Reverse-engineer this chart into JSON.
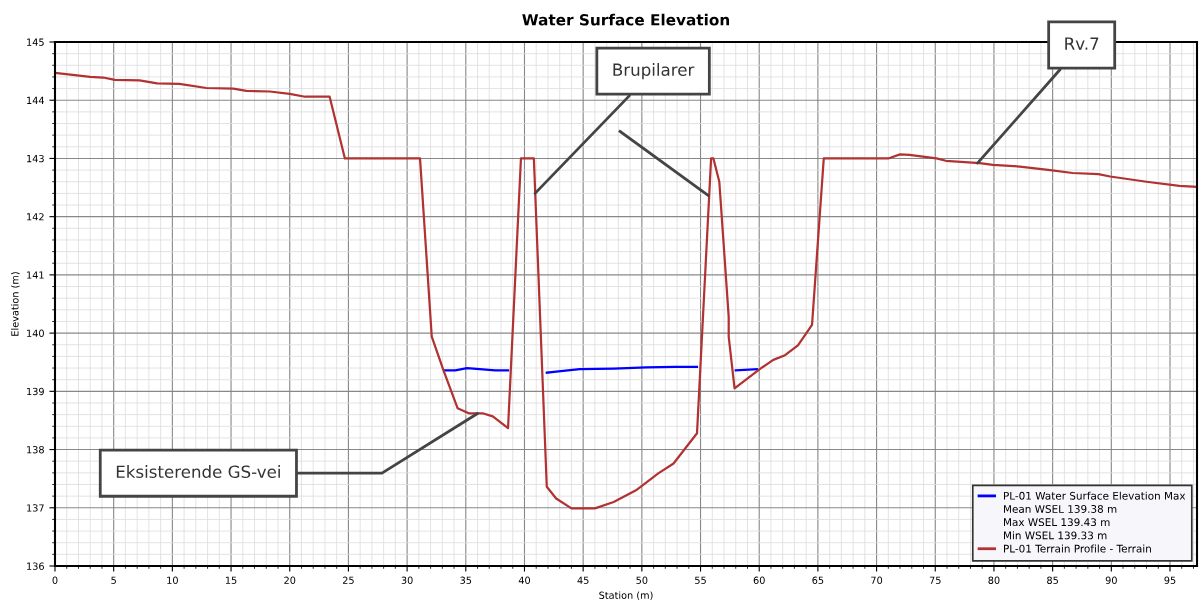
{
  "chart_data": {
    "type": "line",
    "title": "Water Surface Elevation",
    "xlabel": "Station (m)",
    "ylabel": "Elevation (m)",
    "xlim": [
      0,
      97.3
    ],
    "xticks": [
      0,
      5,
      10,
      15,
      20,
      25,
      30,
      35,
      40,
      45,
      50,
      55,
      60,
      65,
      70,
      75,
      80,
      85,
      90,
      95
    ],
    "ylim": [
      136,
      145
    ],
    "yticks": [
      136,
      137,
      138,
      139,
      140,
      141,
      142,
      143,
      144,
      145
    ],
    "grid": true,
    "legend": "bottom right",
    "marker": "none",
    "line_style": "solid",
    "series": [
      {
        "name": "PL-01 Water Surface Elevation Max",
        "color": "#0000ff",
        "x": [
          33.2,
          34.1,
          35.1,
          36.2,
          37.5,
          38.6,
          40.2,
          41.9,
          42.7,
          44.7,
          47.6,
          50.4,
          52.8,
          54.7,
          57.0,
          58.0,
          59.8
        ],
        "values": [
          139.36,
          139.36,
          139.4,
          139.38,
          139.36,
          139.36,
          null,
          139.32,
          139.34,
          139.38,
          139.39,
          139.41,
          139.42,
          139.42,
          null,
          139.36,
          139.38
        ]
      },
      {
        "name": "PL-01 Terrain Profile - Terrain",
        "color": "#b03232",
        "x": [
          0,
          3.0,
          4.1,
          5.1,
          7.2,
          8.7,
          10.6,
          12.9,
          15.2,
          16.3,
          18.3,
          20.0,
          21.3,
          23.4,
          24.7,
          31.1,
          32.1,
          33.1,
          34.3,
          35.3,
          36.5,
          37.3,
          38.6,
          39.7,
          40.8,
          41.9,
          42.7,
          44.0,
          46.0,
          47.6,
          49.5,
          51.4,
          52.7,
          54.7,
          55.9,
          56.1,
          56.6,
          57.4,
          57.4,
          57.9,
          60.1,
          61.2,
          62.2,
          63.3,
          64.5,
          65.5,
          71.0,
          72.0,
          72.8,
          75.1,
          75.9,
          78.8,
          79.9,
          82.2,
          84.8,
          86.7,
          88.9,
          89.9,
          93.0,
          95.8,
          97.3
        ],
        "values": [
          144.47,
          144.4,
          144.39,
          144.35,
          144.34,
          144.29,
          144.28,
          144.21,
          144.2,
          144.16,
          144.15,
          144.11,
          144.06,
          144.06,
          143.0,
          143.0,
          139.94,
          139.36,
          138.71,
          138.62,
          138.62,
          138.57,
          138.37,
          143.0,
          143.0,
          137.36,
          137.16,
          136.99,
          136.99,
          137.1,
          137.3,
          137.59,
          137.76,
          138.28,
          143.0,
          143.0,
          142.6,
          140.28,
          139.94,
          139.05,
          139.39,
          139.54,
          139.62,
          139.79,
          140.14,
          143.0,
          143.0,
          143.07,
          143.06,
          143.0,
          142.96,
          142.92,
          142.89,
          142.86,
          142.8,
          142.75,
          142.73,
          142.69,
          142.6,
          142.53,
          142.51
        ]
      }
    ],
    "annotations": [
      {
        "text": "Brupilarer",
        "x": 40.9,
        "y": 142.4
      },
      {
        "text": "Rv.7",
        "x": 78.6,
        "y": 142.92
      },
      {
        "text": "Eksisterende GS-vei",
        "x": 36.0,
        "y": 138.62
      },
      "Mean WSEL 139.38 m",
      "Max WSEL 139.43 m",
      "Min WSEL 139.33 m"
    ]
  }
}
